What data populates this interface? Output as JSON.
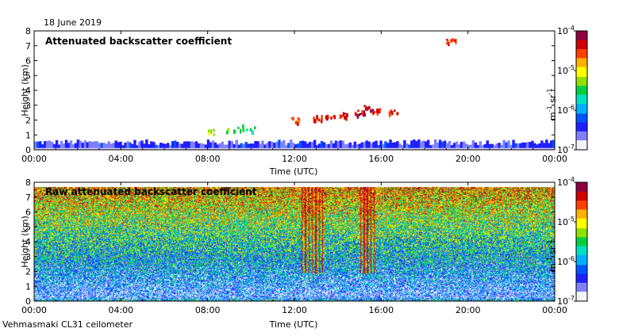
{
  "date_label": "18 June 2019",
  "instrument_label": "Vehmasmaki CL31 ceilometer",
  "colormap": [
    "#f2f2fb",
    "#8080ff",
    "#2020ff",
    "#0055ff",
    "#00b0ff",
    "#00e0c0",
    "#00d040",
    "#90e000",
    "#ffff00",
    "#ffb000",
    "#ff4000",
    "#d00000",
    "#900040",
    "#600060"
  ],
  "chart_data": [
    {
      "type": "heatmap",
      "title": "Attenuated backscatter coefficient",
      "xlabel": "Time (UTC)",
      "ylabel": "Height (km)",
      "x_ticks": [
        "00:00",
        "04:00",
        "08:00",
        "12:00",
        "16:00",
        "20:00",
        "00:00"
      ],
      "x_range_hours": [
        0,
        24
      ],
      "y_ticks": [
        "0",
        "1",
        "2",
        "3",
        "4",
        "5",
        "6",
        "7",
        "8"
      ],
      "ylim": [
        0,
        8
      ],
      "colorbar": {
        "ticks": [
          {
            "value": -4,
            "base": "10",
            "exp": "-4"
          },
          {
            "value": -5,
            "base": "10",
            "exp": "-5"
          },
          {
            "value": -6,
            "base": "10",
            "exp": "-6"
          },
          {
            "value": -7,
            "base": "10",
            "exp": "-7"
          }
        ],
        "range_log10": [
          -7,
          -4
        ],
        "label_base": "m",
        "label_exp1": "-1",
        "label_mid": " sr",
        "label_exp2": "-1"
      },
      "features": [
        {
          "kind": "surface_layer",
          "t_start": 0,
          "t_end": 24,
          "h_top_km": 0.5,
          "log10": -6.5
        },
        {
          "kind": "aerosol_patch",
          "t": 9.0,
          "h_km": 1.4,
          "log10": -5.5
        },
        {
          "kind": "aerosol_patch",
          "t": 9.5,
          "h_km": 1.5,
          "log10": -5.4
        },
        {
          "kind": "aerosol_patch",
          "t": 10.0,
          "h_km": 1.4,
          "log10": -5.5
        },
        {
          "kind": "aerosol_patch",
          "t": 8.2,
          "h_km": 1.2,
          "log10": -5.3
        },
        {
          "kind": "cloud",
          "t": 12.0,
          "h_km": 2.0,
          "log10": -4.6
        },
        {
          "kind": "cloud",
          "t": 13.0,
          "h_km": 2.1,
          "log10": -4.5
        },
        {
          "kind": "cloud",
          "t": 13.6,
          "h_km": 2.2,
          "log10": -4.4
        },
        {
          "kind": "cloud",
          "t": 14.2,
          "h_km": 2.3,
          "log10": -4.4
        },
        {
          "kind": "cloud",
          "t": 15.0,
          "h_km": 2.5,
          "log10": -4.3
        },
        {
          "kind": "cloud",
          "t": 15.4,
          "h_km": 2.8,
          "log10": -4.3
        },
        {
          "kind": "cloud",
          "t": 15.8,
          "h_km": 2.6,
          "log10": -4.4
        },
        {
          "kind": "cloud",
          "t": 16.5,
          "h_km": 2.5,
          "log10": -4.4
        },
        {
          "kind": "cloud",
          "t": 19.2,
          "h_km": 7.3,
          "log10": -4.5
        }
      ]
    },
    {
      "type": "heatmap",
      "title": "Raw attenuated backscatter coefficient",
      "xlabel": "Time (UTC)",
      "ylabel": "Height (km)",
      "x_ticks": [
        "00:00",
        "04:00",
        "08:00",
        "12:00",
        "16:00",
        "20:00",
        "00:00"
      ],
      "x_range_hours": [
        0,
        24
      ],
      "y_ticks": [
        "0",
        "1",
        "2",
        "3",
        "4",
        "5",
        "6",
        "7",
        "8"
      ],
      "ylim": [
        0,
        8
      ],
      "colorbar": {
        "ticks": [
          {
            "value": -4,
            "base": "10",
            "exp": "-4"
          },
          {
            "value": -5,
            "base": "10",
            "exp": "-5"
          },
          {
            "value": -6,
            "base": "10",
            "exp": "-6"
          },
          {
            "value": -7,
            "base": "10",
            "exp": "-7"
          }
        ],
        "range_log10": [
          -7,
          -4
        ],
        "label_base": "m",
        "label_exp1": "-1",
        "label_mid": " sr",
        "label_exp2": "-1"
      },
      "data_top_km": 7.7,
      "cloud_columns": [
        {
          "t_start": 12.3,
          "t_end": 13.4
        },
        {
          "t_start": 15.0,
          "t_end": 15.7
        }
      ]
    }
  ]
}
